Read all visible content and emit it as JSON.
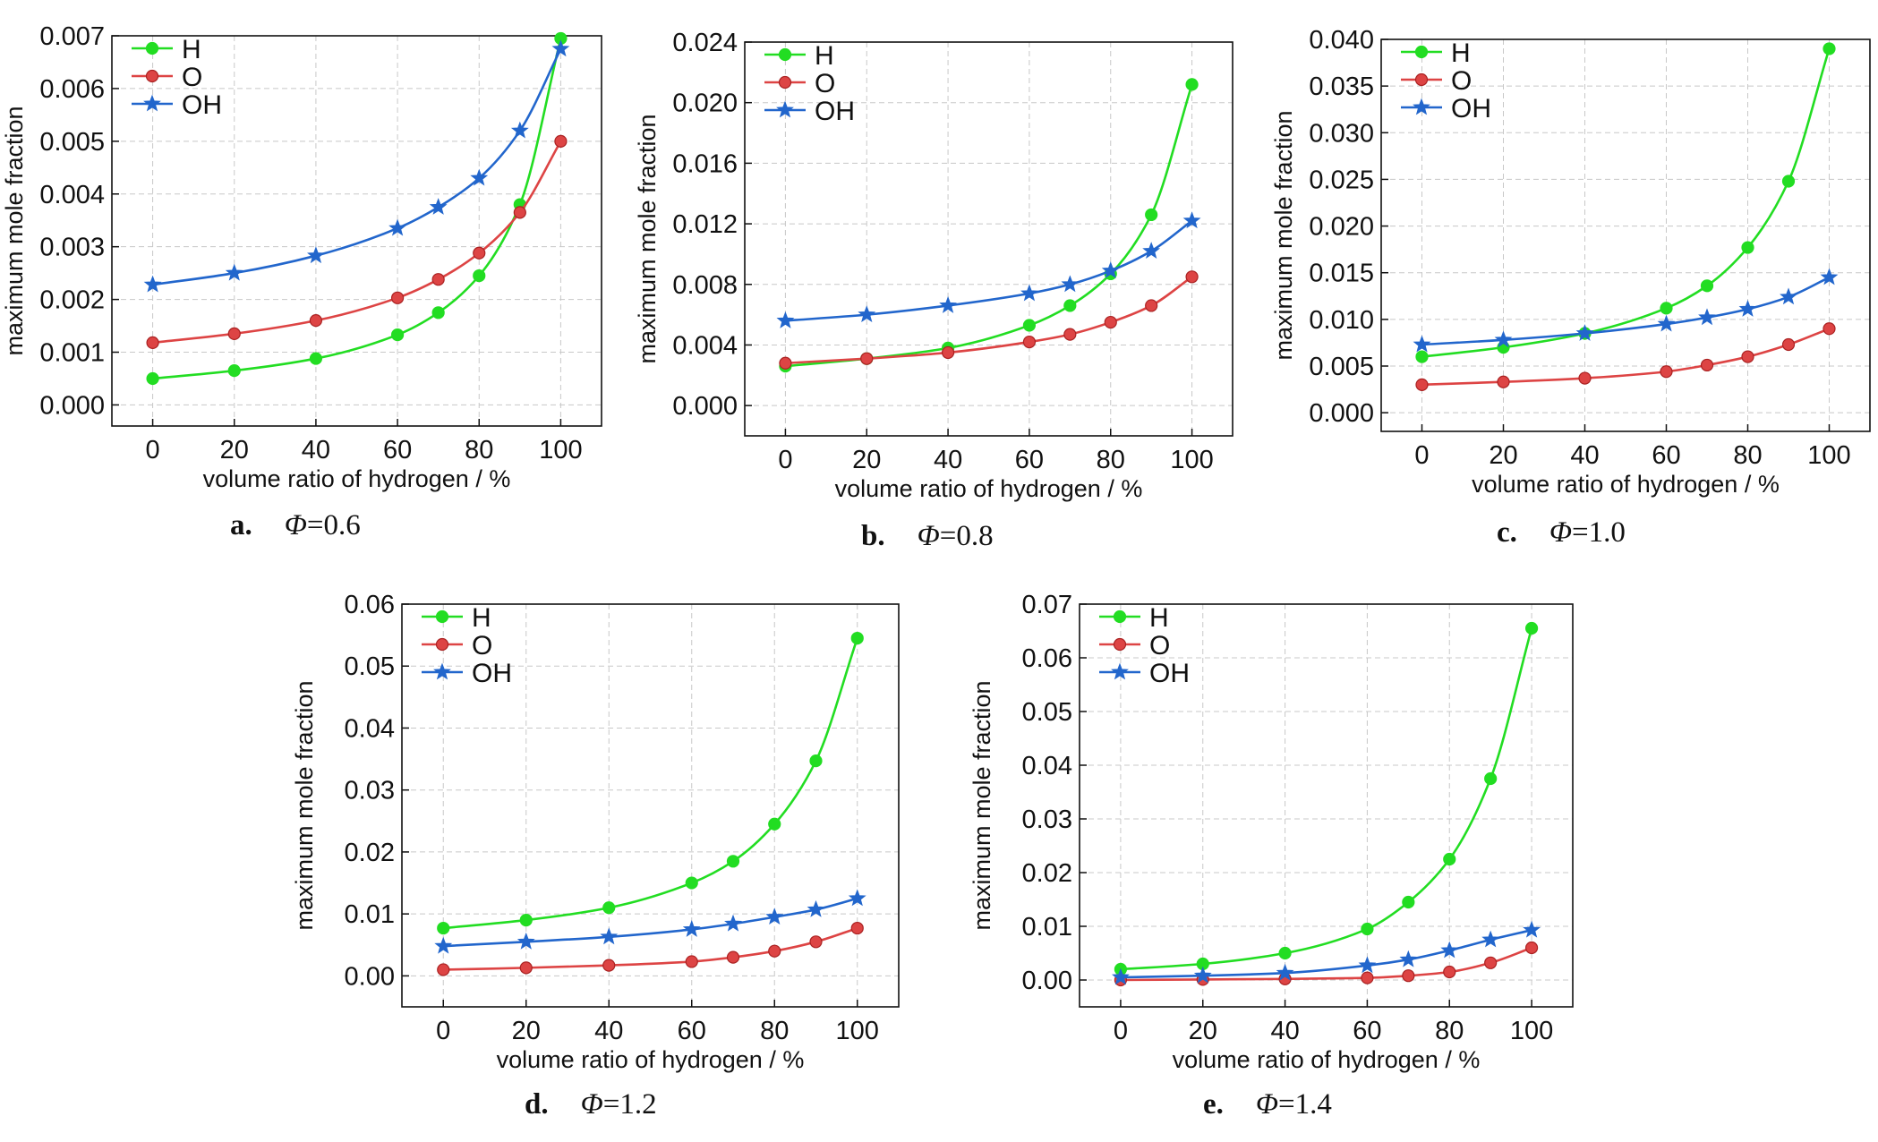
{
  "chart_data": [
    {
      "type": "line",
      "caption_letter": "a.",
      "caption_symbol": "Φ",
      "caption_value": "=0.6",
      "xlabel": "volume ratio of hydrogen / %",
      "ylabel": "maximum mole fraction",
      "xlim": [
        -10,
        110
      ],
      "ylim": [
        -0.0004,
        0.007
      ],
      "xticks": [
        0,
        20,
        40,
        60,
        80,
        100
      ],
      "xtick_labels": [
        "0",
        "20",
        "40",
        "60",
        "80",
        "100"
      ],
      "yticks": [
        0.0,
        0.001,
        0.002,
        0.003,
        0.004,
        0.005,
        0.006,
        0.007
      ],
      "ytick_labels": [
        "0.000",
        "0.001",
        "0.002",
        "0.003",
        "0.004",
        "0.005",
        "0.006",
        "0.007"
      ],
      "grid": true,
      "legend_position": "top-left",
      "x": [
        0,
        20,
        40,
        60,
        70,
        80,
        90,
        100
      ],
      "series": [
        {
          "name": "H",
          "color": "#22dd22",
          "marker": "circle",
          "values": [
            0.0005,
            0.00065,
            0.00088,
            0.00133,
            0.00175,
            0.00245,
            0.0038,
            0.00695
          ]
        },
        {
          "name": "O",
          "color": "#dd4444",
          "marker": "circle",
          "values": [
            0.00118,
            0.00135,
            0.0016,
            0.00203,
            0.00238,
            0.00288,
            0.00365,
            0.005
          ]
        },
        {
          "name": "OH",
          "color": "#2266cc",
          "marker": "star",
          "values": [
            0.00228,
            0.0025,
            0.00283,
            0.00335,
            0.00375,
            0.0043,
            0.0052,
            0.00675
          ]
        }
      ]
    },
    {
      "type": "line",
      "caption_letter": "b.",
      "caption_symbol": "Φ",
      "caption_value": "=0.8",
      "xlabel": "volume ratio of hydrogen / %",
      "ylabel": "maximum mole fraction",
      "xlim": [
        -10,
        110
      ],
      "ylim": [
        -0.002,
        0.024
      ],
      "xticks": [
        0,
        20,
        40,
        60,
        80,
        100
      ],
      "xtick_labels": [
        "0",
        "20",
        "40",
        "60",
        "80",
        "100"
      ],
      "yticks": [
        0.0,
        0.004,
        0.008,
        0.012,
        0.016,
        0.02,
        0.024
      ],
      "ytick_labels": [
        "0.000",
        "0.004",
        "0.008",
        "0.012",
        "0.016",
        "0.020",
        "0.024"
      ],
      "grid": true,
      "legend_position": "top-left",
      "x": [
        0,
        20,
        40,
        60,
        70,
        80,
        90,
        100
      ],
      "series": [
        {
          "name": "H",
          "color": "#22dd22",
          "marker": "circle",
          "values": [
            0.0026,
            0.0031,
            0.0038,
            0.0053,
            0.0066,
            0.0087,
            0.0126,
            0.0212
          ]
        },
        {
          "name": "O",
          "color": "#dd4444",
          "marker": "circle",
          "values": [
            0.0028,
            0.0031,
            0.0035,
            0.0042,
            0.0047,
            0.0055,
            0.0066,
            0.0085
          ]
        },
        {
          "name": "OH",
          "color": "#2266cc",
          "marker": "star",
          "values": [
            0.0056,
            0.006,
            0.0066,
            0.0074,
            0.008,
            0.0089,
            0.0102,
            0.0122
          ]
        }
      ]
    },
    {
      "type": "line",
      "caption_letter": "c.",
      "caption_symbol": "Φ",
      "caption_value": "=1.0",
      "xlabel": "volume ratio of hydrogen / %",
      "ylabel": "maximum mole fraction",
      "xlim": [
        -10,
        110
      ],
      "ylim": [
        -0.002,
        0.04
      ],
      "xticks": [
        0,
        20,
        40,
        60,
        80,
        100
      ],
      "xtick_labels": [
        "0",
        "20",
        "40",
        "60",
        "80",
        "100"
      ],
      "yticks": [
        0.0,
        0.005,
        0.01,
        0.015,
        0.02,
        0.025,
        0.03,
        0.035,
        0.04
      ],
      "ytick_labels": [
        "0.000",
        "0.005",
        "0.010",
        "0.015",
        "0.020",
        "0.025",
        "0.030",
        "0.035",
        "0.040"
      ],
      "grid": true,
      "legend_position": "top-left",
      "x": [
        0,
        20,
        40,
        60,
        70,
        80,
        90,
        100
      ],
      "series": [
        {
          "name": "H",
          "color": "#22dd22",
          "marker": "circle",
          "values": [
            0.006,
            0.007,
            0.0085,
            0.0112,
            0.0136,
            0.0177,
            0.0248,
            0.039
          ]
        },
        {
          "name": "O",
          "color": "#dd4444",
          "marker": "circle",
          "values": [
            0.003,
            0.0033,
            0.0037,
            0.0044,
            0.0051,
            0.006,
            0.0073,
            0.009
          ]
        },
        {
          "name": "OH",
          "color": "#2266cc",
          "marker": "star",
          "values": [
            0.0073,
            0.0078,
            0.0085,
            0.0095,
            0.0102,
            0.0111,
            0.0124,
            0.0145
          ]
        }
      ]
    },
    {
      "type": "line",
      "caption_letter": "d.",
      "caption_symbol": "Φ",
      "caption_value": "=1.2",
      "xlabel": "volume ratio of hydrogen / %",
      "ylabel": "maximum mole fraction",
      "xlim": [
        -10,
        110
      ],
      "ylim": [
        -0.005,
        0.06
      ],
      "xticks": [
        0,
        20,
        40,
        60,
        80,
        100
      ],
      "xtick_labels": [
        "0",
        "20",
        "40",
        "60",
        "80",
        "100"
      ],
      "yticks": [
        0.0,
        0.01,
        0.02,
        0.03,
        0.04,
        0.05,
        0.06
      ],
      "ytick_labels": [
        "0.00",
        "0.01",
        "0.02",
        "0.03",
        "0.04",
        "0.05",
        "0.06"
      ],
      "grid": true,
      "legend_position": "top-left",
      "x": [
        0,
        20,
        40,
        60,
        70,
        80,
        90,
        100
      ],
      "series": [
        {
          "name": "H",
          "color": "#22dd22",
          "marker": "circle",
          "values": [
            0.0077,
            0.009,
            0.011,
            0.015,
            0.0185,
            0.0245,
            0.0347,
            0.0545
          ]
        },
        {
          "name": "O",
          "color": "#dd4444",
          "marker": "circle",
          "values": [
            0.001,
            0.0013,
            0.0017,
            0.0023,
            0.003,
            0.004,
            0.0055,
            0.0077
          ]
        },
        {
          "name": "OH",
          "color": "#2266cc",
          "marker": "star",
          "values": [
            0.0048,
            0.0055,
            0.0063,
            0.0075,
            0.0084,
            0.0095,
            0.0107,
            0.0125
          ]
        }
      ]
    },
    {
      "type": "line",
      "caption_letter": "e.",
      "caption_symbol": "Φ",
      "caption_value": "=1.4",
      "xlabel": "volume ratio of hydrogen / %",
      "ylabel": "maximum mole fraction",
      "xlim": [
        -10,
        110
      ],
      "ylim": [
        -0.005,
        0.07
      ],
      "xticks": [
        0,
        20,
        40,
        60,
        80,
        100
      ],
      "xtick_labels": [
        "0",
        "20",
        "40",
        "60",
        "80",
        "100"
      ],
      "yticks": [
        0.0,
        0.01,
        0.02,
        0.03,
        0.04,
        0.05,
        0.06,
        0.07
      ],
      "ytick_labels": [
        "0.00",
        "0.01",
        "0.02",
        "0.03",
        "0.04",
        "0.05",
        "0.06",
        "0.07"
      ],
      "grid": true,
      "legend_position": "top-left",
      "x": [
        0,
        20,
        40,
        60,
        70,
        80,
        90,
        100
      ],
      "series": [
        {
          "name": "H",
          "color": "#22dd22",
          "marker": "circle",
          "values": [
            0.002,
            0.003,
            0.005,
            0.0095,
            0.0145,
            0.0225,
            0.0375,
            0.0655
          ]
        },
        {
          "name": "O",
          "color": "#dd4444",
          "marker": "circle",
          "values": [
            0.0,
            0.0001,
            0.0002,
            0.0004,
            0.0008,
            0.0015,
            0.0032,
            0.006
          ]
        },
        {
          "name": "OH",
          "color": "#2266cc",
          "marker": "star",
          "values": [
            0.0005,
            0.0008,
            0.0013,
            0.0027,
            0.0038,
            0.0055,
            0.0075,
            0.0093
          ]
        }
      ]
    }
  ]
}
